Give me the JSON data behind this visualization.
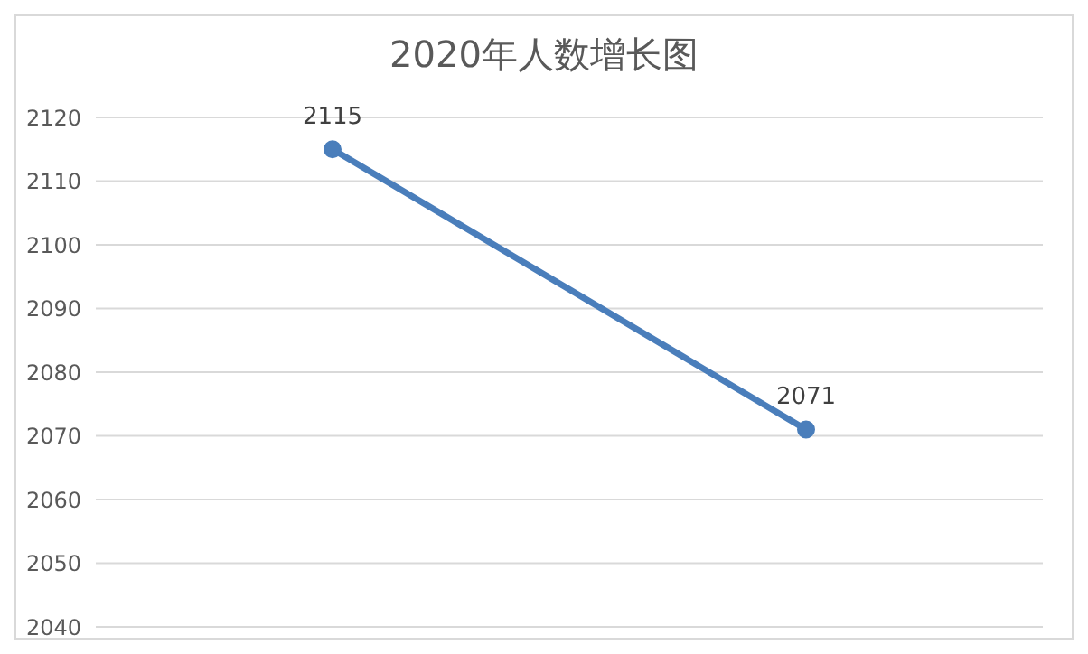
{
  "chart_data": {
    "type": "line",
    "title": "2020年人数增长图",
    "categories": [
      null,
      null
    ],
    "series": [
      {
        "color": "#4a7ebb",
        "values": [
          2115,
          2071
        ]
      }
    ],
    "ylim": [
      2040,
      2120
    ],
    "yticks": [
      2040,
      2050,
      2060,
      2070,
      2080,
      2090,
      2100,
      2110,
      2120
    ],
    "grid": "y",
    "marker": "circle",
    "data_labels": true
  }
}
